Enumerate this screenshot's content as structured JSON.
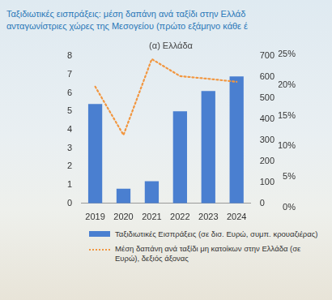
{
  "chart_data": [
    {
      "type": "bar",
      "title": [
        "Ταξιδιωτικές εισπράξεις: μέση δαπάνη ανά ταξίδι στην Ελλάδ",
        "ανταγωνίστριες χώρες της Μεσογείου (πρώτο εξάμηνο κάθε έ"
      ],
      "subtitle": "(α) Ελλάδα",
      "categories": [
        "2019",
        "2020",
        "2021",
        "2022",
        "2023",
        "2024"
      ],
      "series": [
        {
          "name": "Ταξιδιωτικές Εισπράξεις (σε δισ. Ευρώ, συμπ. κρουαζιέρας)",
          "type": "bar",
          "color": "#4a7fd0",
          "values": [
            5.4,
            0.8,
            1.2,
            5.0,
            6.1,
            6.9
          ]
        },
        {
          "name": "Μέση δαπάνη ανά ταξίδι μη κατοίκων στην Ελλάδα (σε Ευρώ), δεξιός άξονας",
          "type": "line",
          "color": "#f2963f",
          "line_style": "dotted",
          "axis": "y2",
          "values": [
            555,
            325,
            686,
            605,
            592,
            578
          ]
        }
      ],
      "ylim": [
        0,
        8
      ],
      "yticks": [
        0,
        1,
        2,
        3,
        4,
        5,
        6,
        7,
        8
      ],
      "y2lim": [
        0,
        700
      ],
      "y2ticks": [
        0,
        100,
        200,
        300,
        400,
        500,
        600,
        700
      ],
      "grid": false,
      "legend": "bottom"
    },
    {
      "type": "bar",
      "categories": [],
      "values": [],
      "ylim": [
        0,
        25
      ],
      "yticks": [
        {
          "value": 0,
          "label": "0%"
        },
        {
          "value": 5,
          "label": "5%"
        },
        {
          "value": 10,
          "label": "10%"
        },
        {
          "value": 15,
          "label": "15%"
        },
        {
          "value": 20,
          "label": "20%"
        },
        {
          "value": 25,
          "label": "25%"
        }
      ],
      "grid": false
    }
  ]
}
